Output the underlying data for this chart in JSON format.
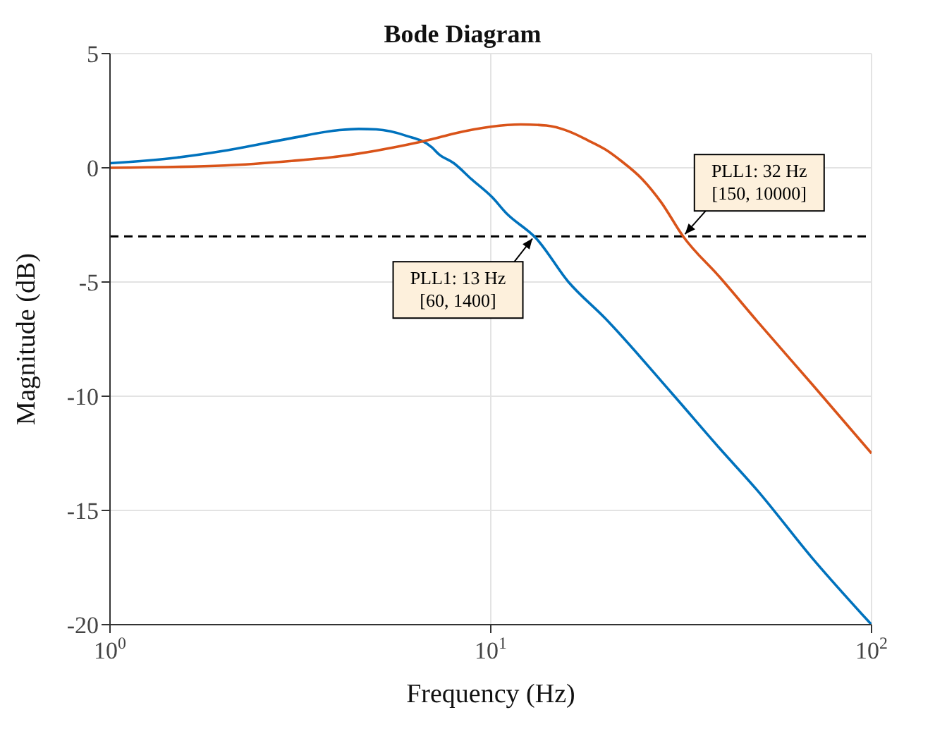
{
  "chart_data": {
    "type": "line",
    "title": "Bode Diagram",
    "xlabel": "Frequency  (Hz)",
    "ylabel": "Magnitude (dB)",
    "log": "x",
    "grid": true,
    "marker": "none",
    "line_style": "solid",
    "xlim": [
      1,
      100
    ],
    "xticks": [
      {
        "value": 1,
        "label": "10$^{0}$"
      },
      {
        "value": 10,
        "label": "10$^{1}$"
      },
      {
        "value": 100,
        "label": "10$^{2}$"
      }
    ],
    "ylim": [
      -20,
      5
    ],
    "yticks": [
      -20,
      -15,
      -10,
      -5,
      0,
      5
    ],
    "series": [
      {
        "color": "#0072bd",
        "x": [
          1,
          1.5,
          2,
          3,
          4,
          4.5,
          5,
          6,
          7,
          7.3,
          8,
          8.9,
          10.1,
          11,
          12.6,
          13,
          16,
          20,
          30,
          40,
          50,
          70,
          100
        ],
        "values": [
          0.2,
          0.45,
          0.75,
          1.3,
          1.65,
          1.7,
          1.68,
          1.4,
          0.9,
          0.6,
          0.2,
          -0.5,
          -1.3,
          -2,
          -2.8,
          -3,
          -5,
          -6.6,
          -9.9,
          -12.3,
          -14.1,
          -17.1,
          -20
        ]
      },
      {
        "color": "#d95319",
        "x": [
          1,
          2,
          3,
          4,
          5,
          6,
          7,
          8,
          10,
          12,
          14,
          16,
          18,
          20,
          22,
          25,
          28,
          32,
          40,
          50,
          70,
          100
        ],
        "values": [
          0,
          0.1,
          0.3,
          0.5,
          0.75,
          1,
          1.25,
          1.5,
          1.8,
          1.9,
          1.85,
          1.6,
          1.2,
          0.8,
          0.3,
          -0.5,
          -1.5,
          -3,
          -4.8,
          -6.7,
          -9.5,
          -12.5
        ]
      }
    ],
    "ref_lines": [
      {
        "axis": "y",
        "value": -3,
        "color": "#000000",
        "line_style": "dashed"
      }
    ],
    "annotations": [
      {
        "text": "PLL1: 13 Hz\n[60, 1400]",
        "x": 13,
        "y": -3
      },
      {
        "text": "PLL1: 32 Hz\n[150, 10000]",
        "x": 32,
        "y": -3
      }
    ]
  }
}
